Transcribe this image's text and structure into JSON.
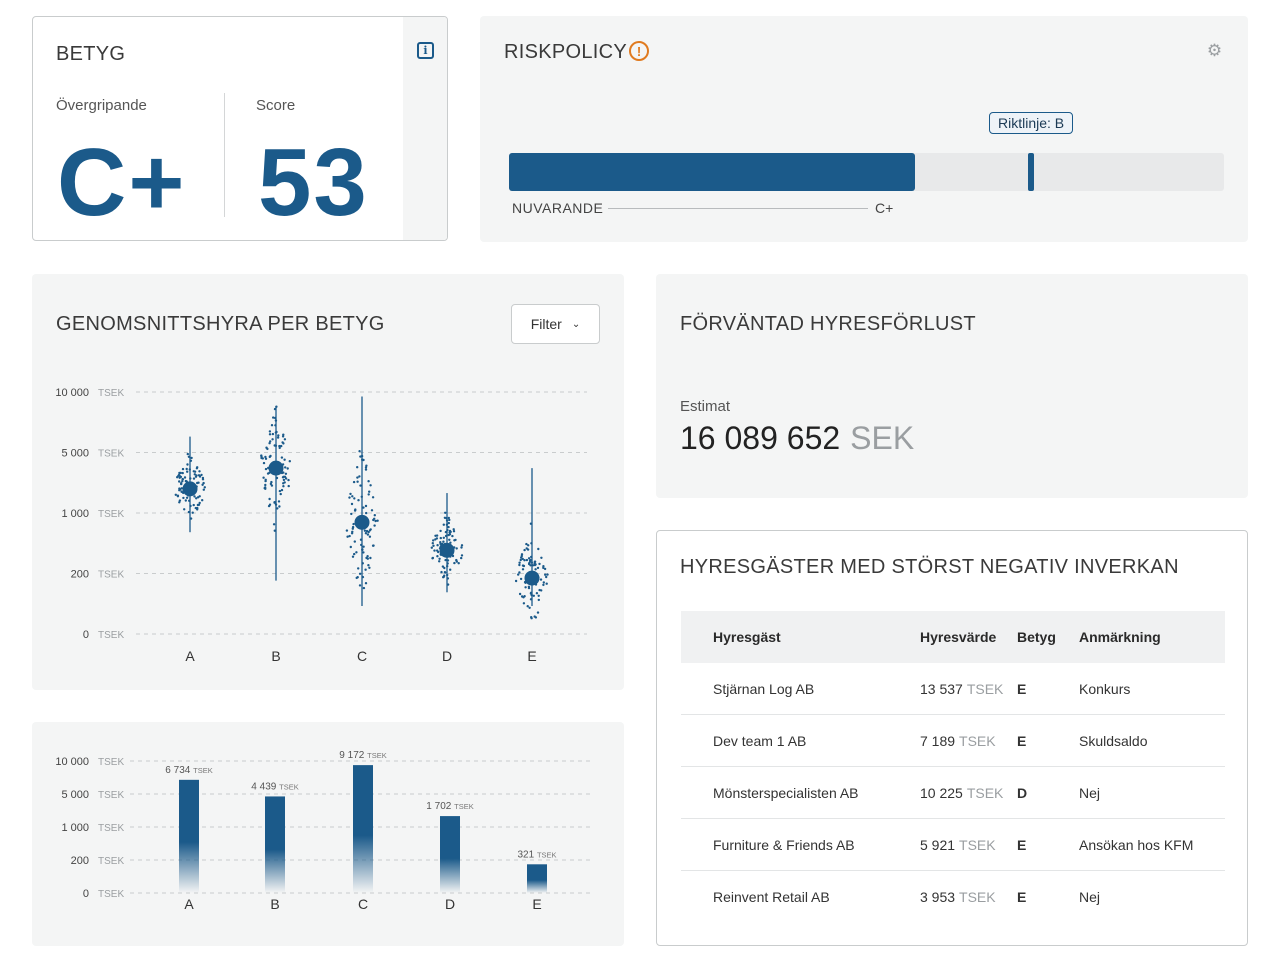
{
  "betyg": {
    "title": "BETYG",
    "overall_label": "Övergripande",
    "overall_value": "C+",
    "score_label": "Score",
    "score_value": "53",
    "info_icon": "info-icon"
  },
  "riskpolicy": {
    "title": "RISKPOLICY",
    "warning_icon": "warning-icon",
    "settings_icon": "gear-icon",
    "guideline_label": "Riktlinje: B",
    "current_label": "NUVARANDE",
    "current_value": "C+",
    "current_fill_fraction": 0.568,
    "guideline_fraction": 0.73,
    "accent_color": "#1b5a8a",
    "warning_color": "#e07a1f"
  },
  "genomsnitt": {
    "title": "GENOMSNITTSHYRA PER BETYG",
    "filter_label": "Filter",
    "filter_icon": "chevron-down-icon"
  },
  "forvantad": {
    "title": "FÖRVÄNTAD HYRESFÖRLUST",
    "estimate_label": "Estimat",
    "estimate_value": "16 089 652",
    "estimate_unit": "SEK"
  },
  "chart_data": [
    {
      "type": "scatter",
      "title": "GENOMSNITTSHYRA PER BETYG",
      "categories": [
        "A",
        "B",
        "C",
        "D",
        "E"
      ],
      "y_ticks": [
        "10 000",
        "5 000",
        "1 000",
        "200",
        "0"
      ],
      "y_unit": "TSEK",
      "y_scale": "log",
      "series": [
        {
          "category": "A",
          "mean": 1900,
          "min": 600,
          "max": 6000
        },
        {
          "category": "B",
          "mean": 3300,
          "min": 170,
          "max": 8500
        },
        {
          "category": "C",
          "mean": 780,
          "min": 95,
          "max": 9500
        },
        {
          "category": "D",
          "mean": 370,
          "min": 130,
          "max": 1700
        },
        {
          "category": "E",
          "mean": 180,
          "min": 95,
          "max": 3300
        }
      ],
      "grid": true
    },
    {
      "type": "bar",
      "categories": [
        "A",
        "B",
        "C",
        "D",
        "E"
      ],
      "values": [
        6734,
        4439,
        9172,
        1702,
        321
      ],
      "value_labels": [
        "6 734",
        "4 439",
        "9 172",
        "1 702",
        "321"
      ],
      "value_unit": "TSEK",
      "y_ticks": [
        "10 000",
        "5 000",
        "1 000",
        "200",
        "0"
      ],
      "y_unit": "TSEK",
      "y_scale": "log",
      "grid": true
    }
  ],
  "tenants": {
    "title": "HYRESGÄSTER MED STÖRST NEGATIV INVERKAN",
    "columns": [
      "Hyresgäst",
      "Hyresvärde",
      "Betyg",
      "Anmärkning"
    ],
    "rows": [
      {
        "name": "Stjärnan Log AB",
        "value": "13 537",
        "unit": "TSEK",
        "grade": "E",
        "remark": "Konkurs",
        "remark_severe": true
      },
      {
        "name": "Dev team 1 AB",
        "value": "7 189",
        "unit": "TSEK",
        "grade": "E",
        "remark": "Skuldsaldo",
        "remark_severe": true
      },
      {
        "name": "Mönsterspecialisten AB",
        "value": "10 225",
        "unit": "TSEK",
        "grade": "D",
        "remark": "Nej",
        "remark_severe": false
      },
      {
        "name": "Furniture & Friends AB",
        "value": "5 921",
        "unit": "TSEK",
        "grade": "E",
        "remark": "Ansökan hos KFM",
        "remark_severe": true
      },
      {
        "name": "Reinvent Retail AB",
        "value": "3 953",
        "unit": "TSEK",
        "grade": "E",
        "remark": "Nej",
        "remark_severe": false
      }
    ]
  }
}
